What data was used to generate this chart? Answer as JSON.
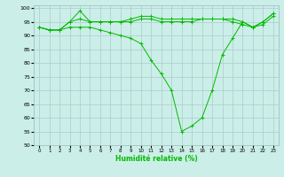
{
  "xlabel": "Humidité relative (%)",
  "background_color": "#cceee8",
  "grid_color": "#aacccc",
  "line_color": "#00bb00",
  "x": [
    0,
    1,
    2,
    3,
    4,
    5,
    6,
    7,
    8,
    9,
    10,
    11,
    12,
    13,
    14,
    15,
    16,
    17,
    18,
    19,
    20,
    21,
    22,
    23
  ],
  "line1": [
    93,
    92,
    92,
    95,
    99,
    95,
    95,
    95,
    95,
    96,
    97,
    97,
    96,
    96,
    96,
    96,
    96,
    96,
    96,
    96,
    95,
    93,
    95,
    98
  ],
  "line2": [
    93,
    92,
    92,
    95,
    96,
    95,
    95,
    95,
    95,
    95,
    96,
    96,
    95,
    95,
    95,
    95,
    96,
    96,
    96,
    95,
    94,
    93,
    94,
    97
  ],
  "line3": [
    93,
    92,
    92,
    93,
    93,
    93,
    92,
    91,
    90,
    89,
    87,
    81,
    76,
    70,
    55,
    57,
    60,
    70,
    83,
    89,
    95,
    93,
    95,
    98
  ],
  "xlim": [
    -0.5,
    23.5
  ],
  "ylim": [
    50,
    101
  ],
  "yticks": [
    50,
    55,
    60,
    65,
    70,
    75,
    80,
    85,
    90,
    95,
    100
  ],
  "xticks": [
    0,
    1,
    2,
    3,
    4,
    5,
    6,
    7,
    8,
    9,
    10,
    11,
    12,
    13,
    14,
    15,
    16,
    17,
    18,
    19,
    20,
    21,
    22,
    23
  ]
}
